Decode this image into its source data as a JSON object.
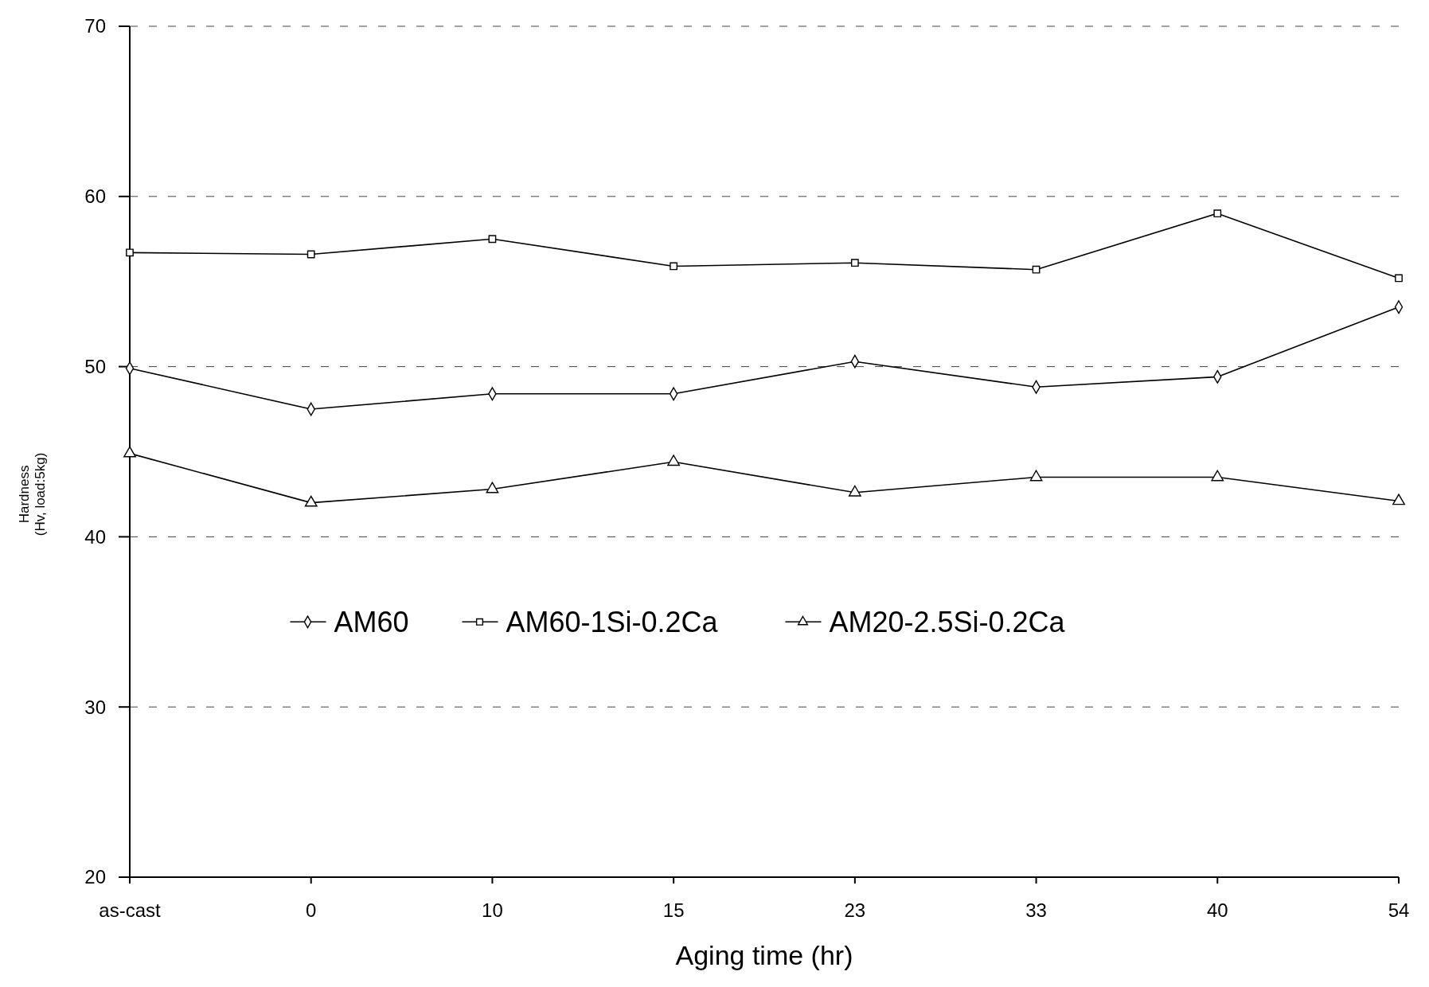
{
  "chart_data": {
    "type": "line",
    "xlabel": "Aging time (hr)",
    "ylabel": "Hardness\n(Hv, load:5kg)",
    "categories": [
      "as-cast",
      "0",
      "10",
      "15",
      "23",
      "33",
      "40",
      "54"
    ],
    "series": [
      {
        "name": "AM60",
        "color": "#000000",
        "marker": "diamond",
        "values": [
          49.9,
          47.5,
          48.4,
          48.4,
          50.3,
          48.8,
          49.4,
          53.5
        ]
      },
      {
        "name": "AM60-1Si-0.2Ca",
        "color": "#000000",
        "marker": "square",
        "values": [
          56.7,
          56.6,
          57.5,
          55.9,
          56.1,
          55.7,
          59.0,
          55.2
        ]
      },
      {
        "name": "AM20-2.5Si-0.2Ca",
        "color": "#000000",
        "marker": "triangle",
        "values": [
          44.9,
          42.0,
          42.8,
          44.4,
          42.6,
          43.5,
          43.5,
          42.1
        ]
      }
    ],
    "ylim": [
      20,
      70
    ],
    "yticks": [
      20,
      30,
      40,
      50,
      60,
      70
    ],
    "grid": "y",
    "legend": "center",
    "line_style": "solid"
  }
}
